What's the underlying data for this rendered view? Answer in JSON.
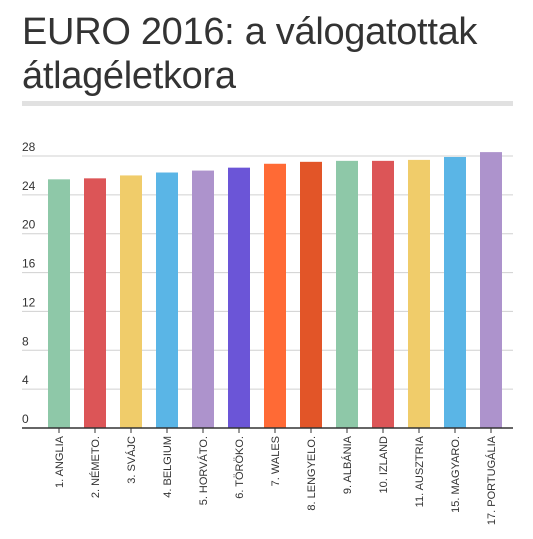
{
  "title": "EURO 2016: a válogatottak átlagéletkora",
  "colors": {
    "title_rule": "#e1e1e1",
    "grid": "#d0d0d0",
    "axis": "#333333"
  },
  "chart_data": {
    "type": "bar",
    "title": "",
    "xlabel": "",
    "ylabel": "",
    "ylim": [
      0,
      28
    ],
    "yticks": [
      0,
      4,
      8,
      12,
      16,
      20,
      24,
      28
    ],
    "grid": true,
    "categories": [
      "1. ANGLIA",
      "2. NÉMETO.",
      "3. SVÁJC",
      "4. BELGIUM",
      "5. HORVÁTO.",
      "6. TÖRÖKO.",
      "7. WALES",
      "8. LENGYELO.",
      "9. ALBÁNIA",
      "10. IZLAND",
      "11. AUSZTRIA",
      "15. MAGYARO.",
      "17. PORTUGÁLIA"
    ],
    "values": [
      25.6,
      25.7,
      26.0,
      26.3,
      26.5,
      26.8,
      27.2,
      27.4,
      27.5,
      27.5,
      27.6,
      27.9,
      28.4
    ],
    "bar_colors": [
      "#8ec8a8",
      "#dc5557",
      "#f0cc6a",
      "#5ab5e6",
      "#ad93cc",
      "#6b55d7",
      "#ff6a35",
      "#e25528",
      "#8ec8a8",
      "#dc5557",
      "#f0cc6a",
      "#5ab5e6",
      "#ad93cc"
    ]
  }
}
